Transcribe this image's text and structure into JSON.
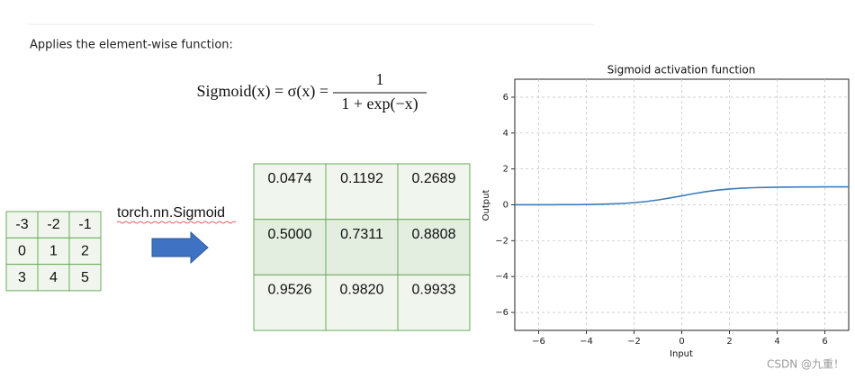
{
  "intro": "Applies the element-wise function:",
  "formula": {
    "lhs": "Sigmoid(x) = σ(x) =",
    "numerator": "1",
    "denominator": "1 + exp(−x)"
  },
  "input_matrix": {
    "rows": [
      [
        -3,
        -2,
        -1
      ],
      [
        0,
        1,
        2
      ],
      [
        3,
        4,
        5
      ]
    ]
  },
  "operation": "torch.nn.Sigmoid",
  "output_matrix": {
    "rows": [
      [
        "0.0474",
        "0.1192",
        "0.2689"
      ],
      [
        "0.5000",
        "0.7311",
        "0.8808"
      ],
      [
        "0.9526",
        "0.9820",
        "0.9933"
      ]
    ]
  },
  "chart_data": {
    "type": "line",
    "title": "Sigmoid activation function",
    "xlabel": "Input",
    "ylabel": "Output",
    "x": [
      -7,
      -6.5,
      -6,
      -5.5,
      -5,
      -4.5,
      -4,
      -3.5,
      -3,
      -2.5,
      -2,
      -1.5,
      -1,
      -0.5,
      0,
      0.5,
      1,
      1.5,
      2,
      2.5,
      3,
      3.5,
      4,
      4.5,
      5,
      5.5,
      6,
      6.5,
      7
    ],
    "values": [
      0.001,
      0.002,
      0.002,
      0.004,
      0.007,
      0.011,
      0.018,
      0.029,
      0.047,
      0.076,
      0.119,
      0.182,
      0.269,
      0.378,
      0.5,
      0.622,
      0.731,
      0.818,
      0.881,
      0.924,
      0.953,
      0.971,
      0.982,
      0.989,
      0.993,
      0.996,
      0.998,
      0.998,
      0.999
    ],
    "color": "#3b7dbb",
    "grid": true,
    "xlim": [
      -7,
      7
    ],
    "ylim": [
      -7,
      7
    ],
    "xticks": [
      {
        "value": -6,
        "label": "−6"
      },
      {
        "value": -4,
        "label": "−4"
      },
      {
        "value": -2,
        "label": "−2"
      },
      0,
      2,
      4,
      6
    ],
    "yticks": [
      {
        "value": -6,
        "label": "−6"
      },
      {
        "value": -4,
        "label": "−4"
      },
      {
        "value": -2,
        "label": "−2"
      },
      0,
      2,
      4,
      6
    ]
  },
  "watermark": "CSDN @九重！"
}
